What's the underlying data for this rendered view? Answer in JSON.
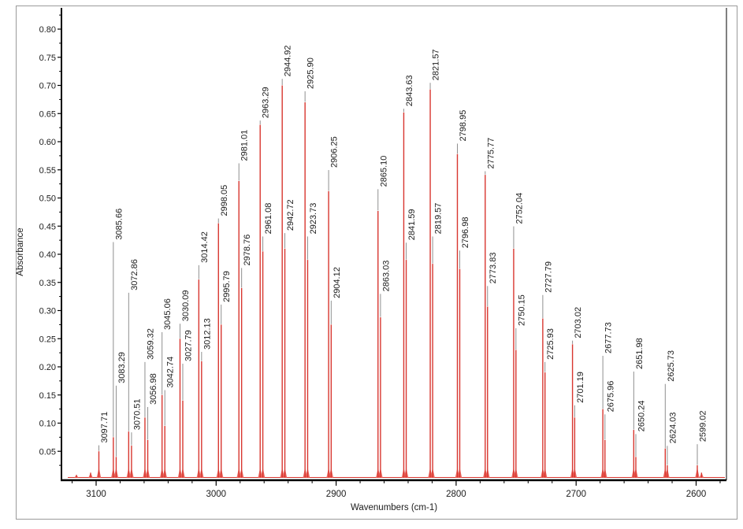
{
  "chart_data": {
    "type": "line",
    "title": "",
    "xlabel": "Wavenumbers (cm-1)",
    "ylabel": "Absorbance",
    "legend": "none",
    "grid": false,
    "x_axis": {
      "reversed": true,
      "min": 2575,
      "max": 3129,
      "major_ticks": [
        3100,
        3000,
        2900,
        2800,
        2700,
        2600
      ],
      "minor_tick_step": 20
    },
    "y_axis": {
      "min": 0,
      "max": 0.838,
      "major_tick_step": 0.05,
      "minor_tick_step": 0.025,
      "tick_labels": [
        "0.05",
        "0.10",
        "0.15",
        "0.20",
        "0.25",
        "0.30",
        "0.35",
        "0.40",
        "0.45",
        "0.50",
        "0.55",
        "0.60",
        "0.65",
        "0.70",
        "0.75",
        "0.80"
      ]
    },
    "colors": {
      "peak": "#d8362f",
      "peak_flare": "#e8554b",
      "leader": "#8f8f8f",
      "axis": "#000000",
      "text": "#1c1c1c",
      "frame": "#9a9a9a",
      "background": "#ffffff"
    },
    "peaks": [
      {
        "label": "",
        "wavenumber": 3116.4,
        "absorbance": 0.008,
        "label_abs": null
      },
      {
        "label": "",
        "wavenumber": 3104.6,
        "absorbance": 0.012,
        "label_abs": null
      },
      {
        "label": "3097.71",
        "wavenumber": 3097.71,
        "absorbance": 0.05,
        "label_abs": 0.062
      },
      {
        "label": "3085.66",
        "wavenumber": 3085.66,
        "absorbance": 0.075,
        "label_abs": 0.423
      },
      {
        "label": "3083.29",
        "wavenumber": 3083.29,
        "absorbance": 0.04,
        "label_abs": 0.168
      },
      {
        "label": "3072.86",
        "wavenumber": 3072.86,
        "absorbance": 0.085,
        "label_abs": 0.333
      },
      {
        "label": "3070.51",
        "wavenumber": 3070.51,
        "absorbance": 0.06,
        "label_abs": 0.085
      },
      {
        "label": "3059.32",
        "wavenumber": 3059.32,
        "absorbance": 0.11,
        "label_abs": 0.21
      },
      {
        "label": "3056.98",
        "wavenumber": 3056.98,
        "absorbance": 0.07,
        "label_abs": 0.13
      },
      {
        "label": "3045.06",
        "wavenumber": 3045.06,
        "absorbance": 0.15,
        "label_abs": 0.263
      },
      {
        "label": "3042.74",
        "wavenumber": 3042.74,
        "absorbance": 0.095,
        "label_abs": 0.16
      },
      {
        "label": "3030.09",
        "wavenumber": 3030.09,
        "absorbance": 0.25,
        "label_abs": 0.278
      },
      {
        "label": "3027.79",
        "wavenumber": 3027.79,
        "absorbance": 0.14,
        "label_abs": 0.207
      },
      {
        "label": "3014.42",
        "wavenumber": 3014.42,
        "absorbance": 0.355,
        "label_abs": 0.382
      },
      {
        "label": "3012.13",
        "wavenumber": 3012.13,
        "absorbance": 0.21,
        "label_abs": 0.228
      },
      {
        "label": "2998.05",
        "wavenumber": 2998.05,
        "absorbance": 0.455,
        "label_abs": 0.465
      },
      {
        "label": "2995.79",
        "wavenumber": 2995.79,
        "absorbance": 0.275,
        "label_abs": 0.312
      },
      {
        "label": "2981.01",
        "wavenumber": 2981.01,
        "absorbance": 0.53,
        "label_abs": 0.563
      },
      {
        "label": "2978.76",
        "wavenumber": 2978.76,
        "absorbance": 0.34,
        "label_abs": 0.377
      },
      {
        "label": "2963.29",
        "wavenumber": 2963.29,
        "absorbance": 0.63,
        "label_abs": 0.639
      },
      {
        "label": "2961.08",
        "wavenumber": 2961.08,
        "absorbance": 0.405,
        "label_abs": 0.433
      },
      {
        "label": "2944.92",
        "wavenumber": 2944.92,
        "absorbance": 0.7,
        "label_abs": 0.713
      },
      {
        "label": "2942.72",
        "wavenumber": 2942.72,
        "absorbance": 0.41,
        "label_abs": 0.439
      },
      {
        "label": "2925.90",
        "wavenumber": 2925.9,
        "absorbance": 0.67,
        "label_abs": 0.691
      },
      {
        "label": "2923.73",
        "wavenumber": 2923.73,
        "absorbance": 0.39,
        "label_abs": 0.433
      },
      {
        "label": "2906.25",
        "wavenumber": 2906.25,
        "absorbance": 0.512,
        "label_abs": 0.551
      },
      {
        "label": "2904.12",
        "wavenumber": 2904.12,
        "absorbance": 0.275,
        "label_abs": 0.319
      },
      {
        "label": "2865.10",
        "wavenumber": 2865.1,
        "absorbance": 0.477,
        "label_abs": 0.517
      },
      {
        "label": "2863.03",
        "wavenumber": 2863.03,
        "absorbance": 0.288,
        "label_abs": 0.331
      },
      {
        "label": "2843.63",
        "wavenumber": 2843.63,
        "absorbance": 0.652,
        "label_abs": 0.66
      },
      {
        "label": "2841.59",
        "wavenumber": 2841.59,
        "absorbance": 0.39,
        "label_abs": 0.422
      },
      {
        "label": "2821.57",
        "wavenumber": 2821.57,
        "absorbance": 0.693,
        "label_abs": 0.706
      },
      {
        "label": "2819.57",
        "wavenumber": 2819.57,
        "absorbance": 0.383,
        "label_abs": 0.433
      },
      {
        "label": "2798.95",
        "wavenumber": 2798.95,
        "absorbance": 0.578,
        "label_abs": 0.598
      },
      {
        "label": "2796.98",
        "wavenumber": 2796.98,
        "absorbance": 0.374,
        "label_abs": 0.408
      },
      {
        "label": "2775.77",
        "wavenumber": 2775.77,
        "absorbance": 0.541,
        "label_abs": 0.549
      },
      {
        "label": "2773.83",
        "wavenumber": 2773.83,
        "absorbance": 0.307,
        "label_abs": 0.345
      },
      {
        "label": "2752.04",
        "wavenumber": 2752.04,
        "absorbance": 0.41,
        "label_abs": 0.451
      },
      {
        "label": "2750.15",
        "wavenumber": 2750.15,
        "absorbance": 0.23,
        "label_abs": 0.27
      },
      {
        "label": "2727.79",
        "wavenumber": 2727.79,
        "absorbance": 0.286,
        "label_abs": 0.329
      },
      {
        "label": "2725.93",
        "wavenumber": 2725.93,
        "absorbance": 0.19,
        "label_abs": 0.21
      },
      {
        "label": "2703.02",
        "wavenumber": 2703.02,
        "absorbance": 0.24,
        "label_abs": 0.248
      },
      {
        "label": "2701.19",
        "wavenumber": 2701.19,
        "absorbance": 0.11,
        "label_abs": 0.133
      },
      {
        "label": "2677.73",
        "wavenumber": 2677.73,
        "absorbance": 0.125,
        "label_abs": 0.221
      },
      {
        "label": "2675.96",
        "wavenumber": 2675.96,
        "absorbance": 0.07,
        "label_abs": 0.117
      },
      {
        "label": "2651.98",
        "wavenumber": 2651.98,
        "absorbance": 0.088,
        "label_abs": 0.193
      },
      {
        "label": "2650.24",
        "wavenumber": 2650.24,
        "absorbance": 0.04,
        "label_abs": 0.082
      },
      {
        "label": "2625.73",
        "wavenumber": 2625.73,
        "absorbance": 0.055,
        "label_abs": 0.171
      },
      {
        "label": "2624.03",
        "wavenumber": 2624.03,
        "absorbance": 0.025,
        "label_abs": 0.061
      },
      {
        "label": "2599.02",
        "wavenumber": 2599.02,
        "absorbance": 0.025,
        "label_abs": 0.064
      },
      {
        "label": "",
        "wavenumber": 2595.5,
        "absorbance": 0.012,
        "label_abs": null
      }
    ]
  }
}
